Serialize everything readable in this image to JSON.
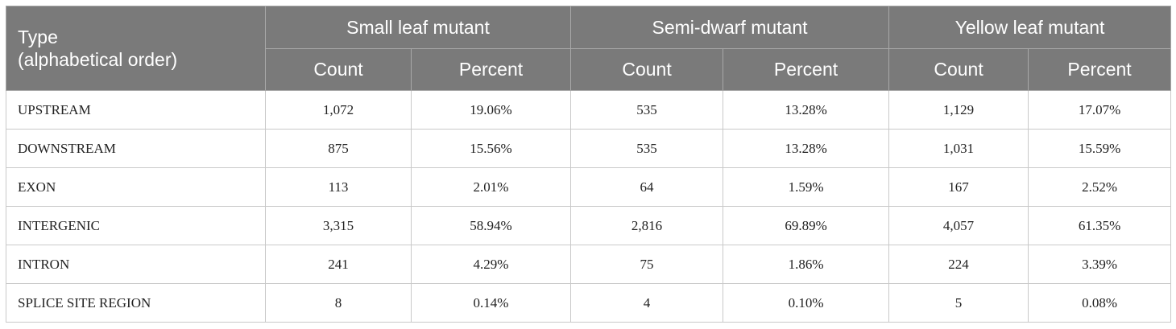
{
  "header": {
    "type_label_line1": "Type",
    "type_label_line2": "(alphabetical order)",
    "groups": [
      "Small leaf mutant",
      "Semi-dwarf mutant",
      "Yellow leaf mutant"
    ],
    "count_label": "Count",
    "percent_label": "Percent"
  },
  "rows": [
    {
      "type": "UPSTREAM",
      "values": [
        "1,072",
        "19.06%",
        "535",
        "13.28%",
        "1,129",
        "17.07%"
      ]
    },
    {
      "type": "DOWNSTREAM",
      "values": [
        "875",
        "15.56%",
        "535",
        "13.28%",
        "1,031",
        "15.59%"
      ]
    },
    {
      "type": "EXON",
      "values": [
        "113",
        "2.01%",
        "64",
        "1.59%",
        "167",
        "2.52%"
      ]
    },
    {
      "type": "INTERGENIC",
      "values": [
        "3,315",
        "58.94%",
        "2,816",
        "69.89%",
        "4,057",
        "61.35%"
      ]
    },
    {
      "type": "INTRON",
      "values": [
        "241",
        "4.29%",
        "75",
        "1.86%",
        "224",
        "3.39%"
      ]
    },
    {
      "type": "SPLICE SITE REGION",
      "values": [
        "8",
        "0.14%",
        "4",
        "0.10%",
        "5",
        "0.08%"
      ]
    }
  ]
}
